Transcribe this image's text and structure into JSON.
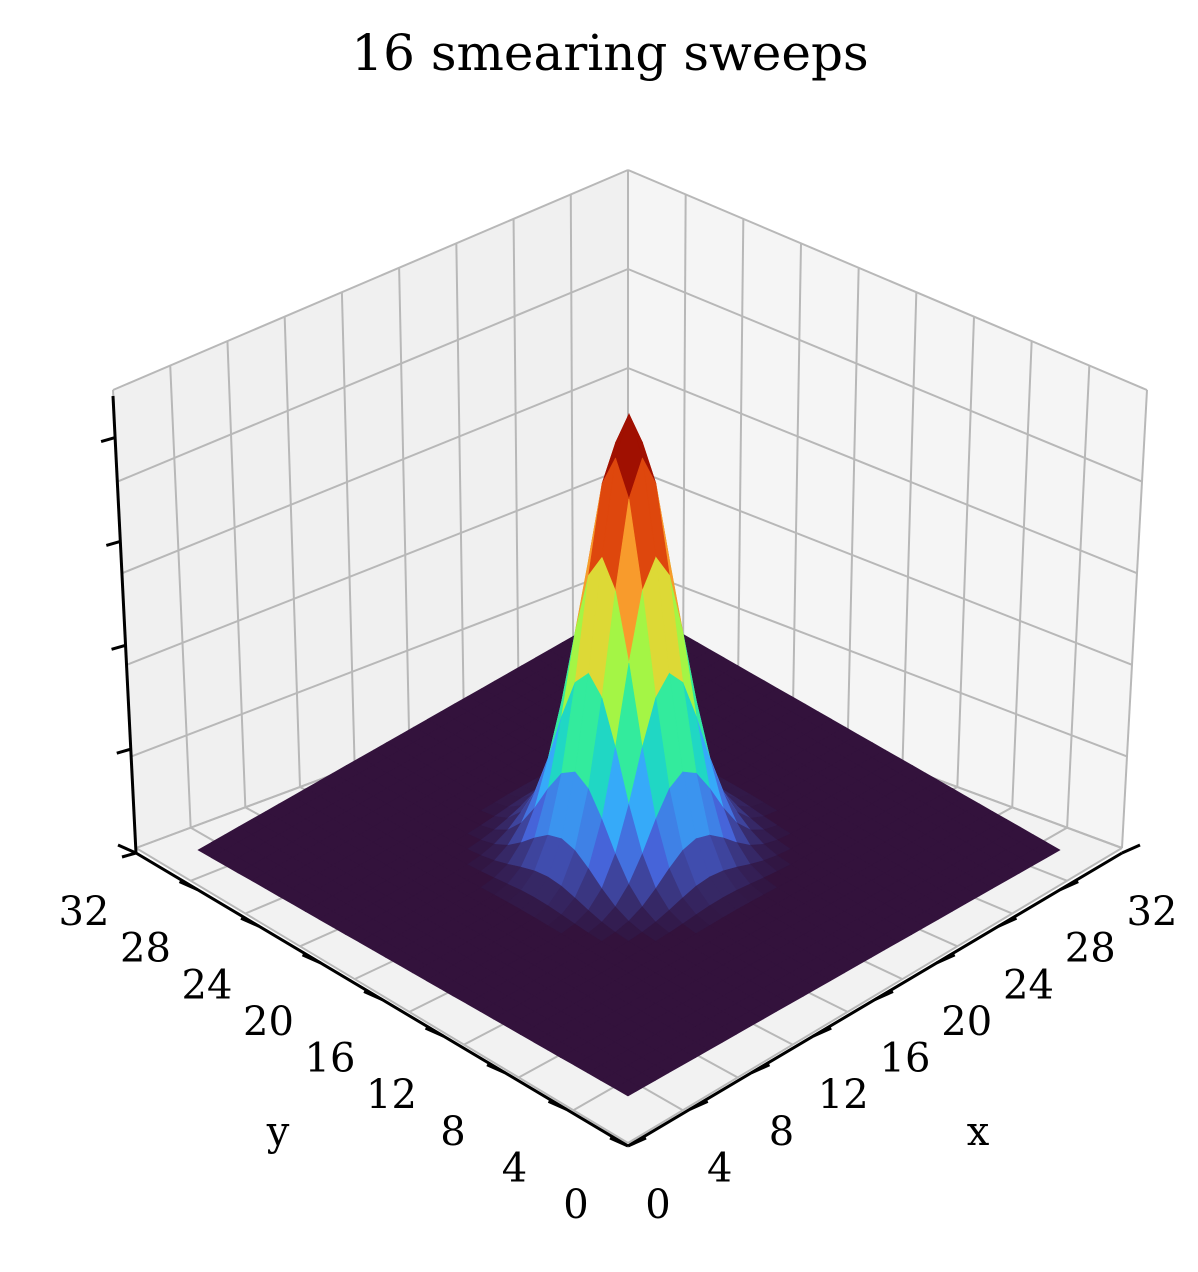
{
  "chart_data": {
    "type": "surface3d",
    "title": "16 smearing sweeps",
    "xlabel": "x",
    "ylabel": "y",
    "zlabel": "",
    "x_ticks": [
      0,
      4,
      8,
      12,
      16,
      20,
      24,
      28,
      32
    ],
    "y_ticks": [
      0,
      4,
      8,
      12,
      16,
      20,
      24,
      28,
      32
    ],
    "z_tick_labels_shown": false,
    "xlim": [
      0,
      32
    ],
    "ylim": [
      0,
      32
    ],
    "zlim": [
      0,
      1
    ],
    "grid": true,
    "colormap": "turbo",
    "floor_color": "#33123c",
    "surface": {
      "grid_n": 32,
      "peak_x": 16,
      "peak_y": 16,
      "peak_value": 0.8,
      "sigma": 2.4
    }
  }
}
